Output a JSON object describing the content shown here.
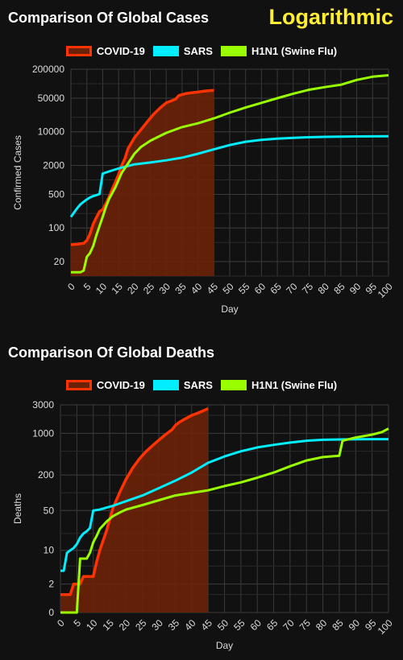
{
  "scale_label": "Logarithmic",
  "colors": {
    "covid": "#ff3300",
    "covid_fill": "#6b2208",
    "sars": "#00eeff",
    "h1n1": "#99ff00",
    "grid": "#3a3a3a",
    "text": "#dddddd"
  },
  "chart_data": [
    {
      "type": "line",
      "title": "Comparison Of Global Cases",
      "xlabel": "Day",
      "ylabel": "Confirmed Cases",
      "yscale": "log",
      "ylim": [
        10,
        200000
      ],
      "xlim": [
        0,
        100
      ],
      "x_ticks": [
        0,
        5,
        10,
        15,
        20,
        25,
        30,
        35,
        40,
        45,
        50,
        55,
        60,
        65,
        70,
        75,
        80,
        85,
        90,
        95,
        100
      ],
      "y_ticks": [
        20,
        100,
        500,
        2000,
        10000,
        50000,
        200000
      ],
      "y_tick_labels": [
        "20",
        "100",
        "500",
        "2000",
        "10000",
        "50000",
        "200000"
      ],
      "legend": [
        "COVID-19",
        "SARS",
        "H1N1 (Swine Flu)"
      ],
      "series": [
        {
          "name": "COVID-19",
          "x": [
            0,
            2,
            4,
            5,
            6,
            7,
            8,
            9,
            10,
            11,
            12,
            13,
            14,
            15,
            16,
            17,
            18,
            20,
            22,
            24,
            26,
            28,
            30,
            32,
            33,
            34,
            36,
            38,
            40,
            42,
            44,
            45
          ],
          "y": [
            45,
            46,
            48,
            55,
            75,
            120,
            165,
            220,
            240,
            320,
            440,
            640,
            900,
            1300,
            2000,
            2800,
            4500,
            7500,
            11000,
            16000,
            23000,
            31000,
            40000,
            45000,
            48000,
            57000,
            62000,
            65000,
            67000,
            70000,
            72000,
            73000
          ]
        },
        {
          "name": "SARS",
          "x": [
            0,
            1,
            2,
            3,
            4,
            5,
            6,
            7,
            8,
            9,
            10,
            12,
            14,
            16,
            18,
            20,
            25,
            30,
            35,
            40,
            45,
            50,
            55,
            60,
            65,
            70,
            75,
            80,
            85,
            90,
            95,
            100
          ],
          "y": [
            170,
            210,
            260,
            310,
            350,
            390,
            430,
            460,
            480,
            510,
            1350,
            1500,
            1650,
            1800,
            1950,
            2100,
            2300,
            2550,
            2900,
            3500,
            4300,
            5300,
            6200,
            6800,
            7200,
            7500,
            7700,
            7850,
            7950,
            8000,
            8050,
            8100
          ]
        },
        {
          "name": "H1N1 (Swine Flu)",
          "x": [
            0,
            3,
            4,
            5,
            6,
            7,
            8,
            9,
            10,
            11,
            12,
            14,
            16,
            18,
            20,
            22,
            25,
            30,
            35,
            40,
            45,
            50,
            55,
            60,
            65,
            70,
            75,
            80,
            85,
            90,
            95,
            100
          ],
          "y": [
            12,
            12,
            13,
            25,
            30,
            42,
            70,
            110,
            170,
            270,
            400,
            700,
            1400,
            2200,
            3500,
            4800,
            6500,
            9500,
            12500,
            15000,
            19000,
            25000,
            32000,
            40000,
            50000,
            62000,
            75000,
            85000,
            95000,
            120000,
            140000,
            150000
          ]
        }
      ]
    },
    {
      "type": "line",
      "title": "Comparison Of Global Deaths",
      "xlabel": "Day",
      "ylabel": "Deaths",
      "yscale": "log",
      "ylim": [
        0,
        3000
      ],
      "xlim": [
        0,
        100
      ],
      "x_ticks": [
        0,
        5,
        10,
        15,
        20,
        25,
        30,
        35,
        40,
        45,
        50,
        55,
        60,
        65,
        70,
        75,
        80,
        85,
        90,
        95,
        100
      ],
      "y_ticks": [
        0,
        2,
        10,
        50,
        200,
        1000,
        3000
      ],
      "y_tick_labels": [
        "0",
        "2",
        "10",
        "50",
        "200",
        "1000",
        "3000"
      ],
      "legend": [
        "COVID-19",
        "SARS",
        "H1N1 (Swine Flu)"
      ],
      "series": [
        {
          "name": "COVID-19",
          "x": [
            0,
            2,
            3,
            4,
            5,
            6,
            7,
            8,
            9,
            10,
            11,
            12,
            13,
            14,
            15,
            16,
            18,
            20,
            22,
            24,
            26,
            28,
            30,
            32,
            34,
            35,
            36,
            38,
            40,
            42,
            44,
            45
          ],
          "y": [
            1,
            1,
            1,
            2,
            2,
            2,
            3,
            3,
            3,
            3,
            6,
            10,
            15,
            22,
            35,
            55,
            100,
            170,
            260,
            370,
            490,
            620,
            770,
            950,
            1150,
            1350,
            1500,
            1750,
            2000,
            2200,
            2450,
            2600
          ]
        },
        {
          "name": "SARS",
          "x": [
            0,
            1,
            2,
            3,
            4,
            5,
            6,
            7,
            8,
            9,
            10,
            12,
            14,
            16,
            18,
            20,
            25,
            30,
            35,
            40,
            45,
            50,
            55,
            60,
            65,
            70,
            75,
            80,
            85,
            90,
            95,
            100
          ],
          "y": [
            4,
            4,
            9,
            10,
            11,
            13,
            17,
            20,
            22,
            25,
            50,
            52,
            56,
            60,
            66,
            72,
            90,
            120,
            160,
            220,
            320,
            410,
            500,
            580,
            640,
            700,
            750,
            780,
            790,
            795,
            800,
            800
          ]
        },
        {
          "name": "H1N1 (Swine Flu)",
          "x": [
            0,
            5,
            6,
            7,
            8,
            9,
            10,
            11,
            12,
            14,
            16,
            18,
            20,
            25,
            30,
            35,
            40,
            45,
            50,
            55,
            60,
            65,
            70,
            75,
            80,
            85,
            86,
            88,
            90,
            95,
            98,
            100
          ],
          "y": [
            0,
            0,
            7,
            7,
            7,
            9,
            14,
            18,
            24,
            32,
            40,
            46,
            52,
            62,
            75,
            90,
            100,
            110,
            130,
            150,
            180,
            220,
            280,
            350,
            400,
            420,
            750,
            800,
            850,
            950,
            1050,
            1200
          ]
        }
      ]
    }
  ]
}
